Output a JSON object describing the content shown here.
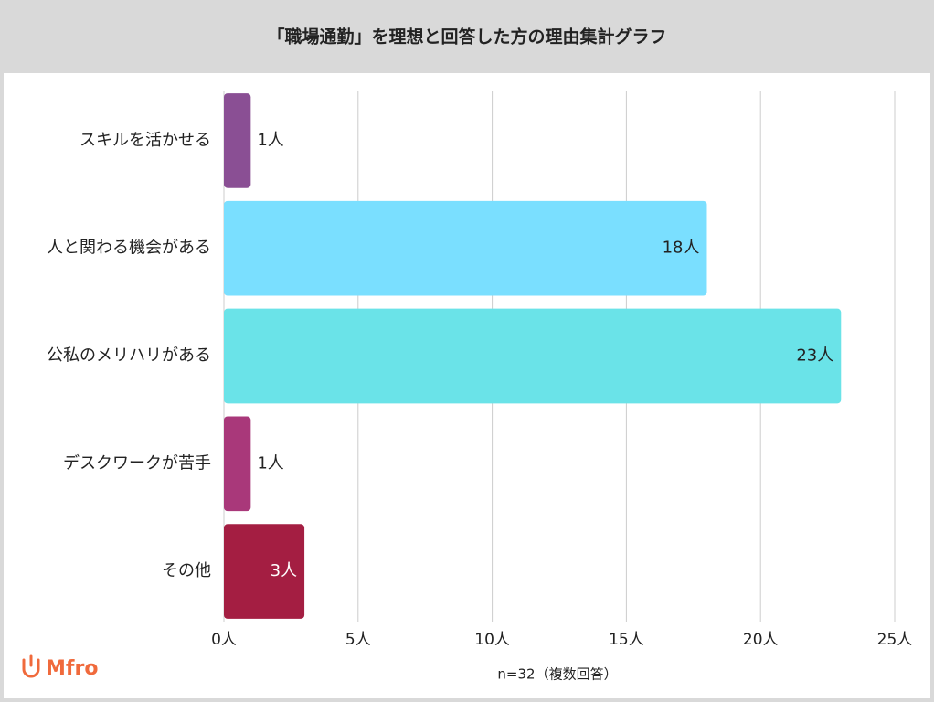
{
  "chart_data": {
    "type": "bar",
    "orientation": "horizontal",
    "title": "「職場通勤」を理想と回答した方の理由集計グラフ",
    "categories": [
      "スキルを活かせる",
      "人と関わる機会がある",
      "公私のメリハリがある",
      "デスクワークが苦手",
      "その他"
    ],
    "values": [
      1,
      18,
      23,
      1,
      3
    ],
    "value_labels": [
      "1人",
      "18人",
      "23人",
      "1人",
      "3人"
    ],
    "colors": [
      "#8a4f94",
      "#7adfff",
      "#6ae3e8",
      "#a9387a",
      "#a41e42"
    ],
    "xlim": [
      0,
      25
    ],
    "xticks": [
      {
        "value": 0,
        "label": "0人"
      },
      {
        "value": 5,
        "label": "5人"
      },
      {
        "value": 10,
        "label": "10人"
      },
      {
        "value": 15,
        "label": "15人"
      },
      {
        "value": 20,
        "label": "20人"
      },
      {
        "value": 25,
        "label": "25人"
      }
    ],
    "grid": true,
    "note": "n=32（複数回答）"
  },
  "logo": "Mfro"
}
